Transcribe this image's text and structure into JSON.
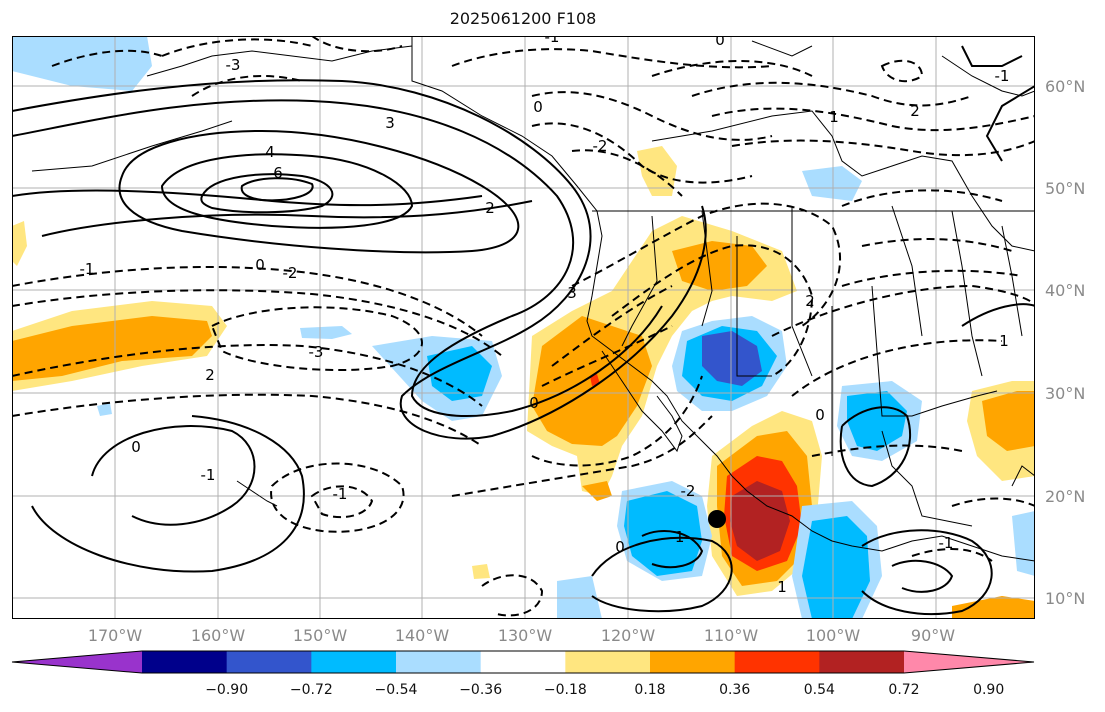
{
  "title": "2025061200 F108",
  "axes": {
    "lon_labels": [
      "170°W",
      "160°W",
      "150°W",
      "140°W",
      "130°W",
      "120°W",
      "110°W",
      "100°W",
      "90°W"
    ],
    "lat_labels": [
      "60°N",
      "50°N",
      "40°N",
      "30°N",
      "20°N",
      "10°N"
    ],
    "extent": {
      "lon_min": -180,
      "lon_max": -80,
      "lat_min": 8,
      "lat_max": 66
    }
  },
  "colorbar": {
    "ticks": [
      "−0.90",
      "−0.72",
      "−0.54",
      "−0.36",
      "−0.18",
      "0.18",
      "0.36",
      "0.54",
      "0.72",
      "0.90"
    ],
    "colors": [
      "#9933cc",
      "#00008b",
      "#3355cc",
      "#00bbff",
      "#aaddff",
      "#ffffff",
      "#ffe680",
      "#ffa500",
      "#ff3300",
      "#b22222",
      "#ff88aa"
    ]
  },
  "contour_labels": [
    "3",
    "4",
    "6",
    "2",
    "0",
    "-1",
    "-2",
    "-3",
    "3",
    "0",
    "-1",
    "2",
    "-3",
    "-2",
    "0",
    "1",
    "-1",
    "-1",
    "0",
    "1",
    "-1",
    "0",
    "0",
    "-1",
    "2",
    "1",
    "-2",
    "2",
    "0",
    "-1"
  ],
  "markers": [
    {
      "name": "storm-center",
      "lon": -110.5,
      "lat": 17.5
    }
  ]
}
